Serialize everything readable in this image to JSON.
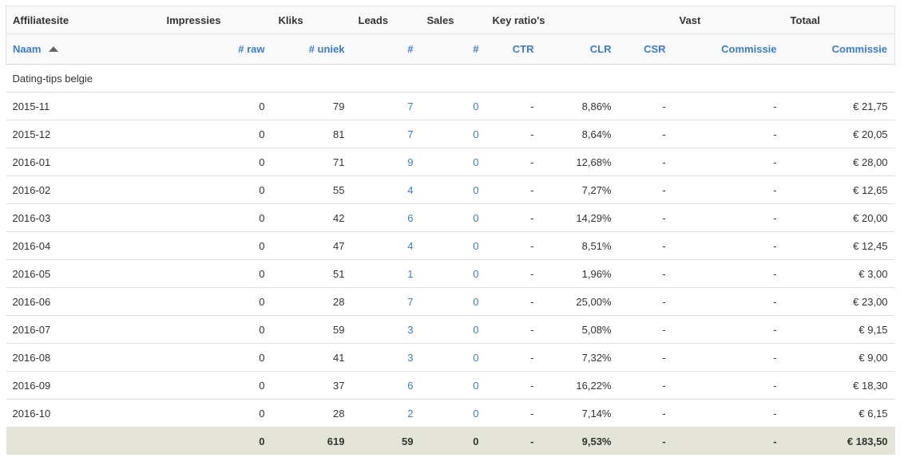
{
  "groups": [
    "Affiliatesite",
    "Impressies",
    "Kliks",
    "Leads",
    "Sales",
    "Key ratio's",
    "Vast",
    "Totaal"
  ],
  "columns": [
    "Naam",
    "# raw",
    "# uniek",
    "#",
    "#",
    "CTR",
    "CLR",
    "CSR",
    "Commissie",
    "Commissie"
  ],
  "group_label": "Dating-tips belgie",
  "rows": [
    [
      "2015-11",
      0,
      79,
      7,
      0,
      "-",
      "8,86%",
      "-",
      "-",
      "€ 21,75"
    ],
    [
      "2015-12",
      0,
      81,
      7,
      0,
      "-",
      "8,64%",
      "-",
      "-",
      "€ 20,05"
    ],
    [
      "2016-01",
      0,
      71,
      9,
      0,
      "-",
      "12,68%",
      "-",
      "-",
      "€ 28,00"
    ],
    [
      "2016-02",
      0,
      55,
      4,
      0,
      "-",
      "7,27%",
      "-",
      "-",
      "€ 12,65"
    ],
    [
      "2016-03",
      0,
      42,
      6,
      0,
      "-",
      "14,29%",
      "-",
      "-",
      "€ 20,00"
    ],
    [
      "2016-04",
      0,
      47,
      4,
      0,
      "-",
      "8,51%",
      "-",
      "-",
      "€ 12,45"
    ],
    [
      "2016-05",
      0,
      51,
      1,
      0,
      "-",
      "1,96%",
      "-",
      "-",
      "€ 3,00"
    ],
    [
      "2016-06",
      0,
      28,
      7,
      0,
      "-",
      "25,00%",
      "-",
      "-",
      "€ 23,00"
    ],
    [
      "2016-07",
      0,
      59,
      3,
      0,
      "-",
      "5,08%",
      "-",
      "-",
      "€ 9,15"
    ],
    [
      "2016-08",
      0,
      41,
      3,
      0,
      "-",
      "7,32%",
      "-",
      "-",
      "€ 9,00"
    ],
    [
      "2016-09",
      0,
      37,
      6,
      0,
      "-",
      "16,22%",
      "-",
      "-",
      "€ 18,30"
    ],
    [
      "2016-10",
      0,
      28,
      2,
      0,
      "-",
      "7,14%",
      "-",
      "-",
      "€ 6,15"
    ]
  ],
  "total": [
    0,
    619,
    59,
    0,
    "-",
    "9,53%",
    "-",
    "-",
    "€ 183,50"
  ]
}
